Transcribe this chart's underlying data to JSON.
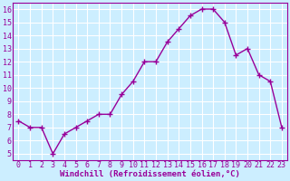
{
  "x": [
    0,
    1,
    2,
    3,
    4,
    5,
    6,
    7,
    8,
    9,
    10,
    11,
    12,
    13,
    14,
    15,
    16,
    17,
    18,
    19,
    20,
    21,
    22,
    23
  ],
  "y": [
    7.5,
    7.0,
    7.0,
    5.0,
    6.5,
    7.0,
    7.5,
    8.0,
    8.0,
    9.5,
    10.5,
    12.0,
    12.0,
    13.5,
    14.5,
    15.5,
    16.0,
    16.0,
    15.0,
    12.5,
    13.0,
    11.0,
    10.5,
    7.0
  ],
  "line_color": "#990099",
  "marker": "+",
  "marker_size": 4,
  "bg_color": "#cceeff",
  "grid_color": "#ffffff",
  "xlabel": "Windchill (Refroidissement éolien,°C)",
  "xlabel_color": "#990099",
  "tick_color": "#990099",
  "label_color": "#990099",
  "ylim": [
    4.5,
    16.5
  ],
  "xlim": [
    -0.5,
    23.5
  ],
  "yticks": [
    5,
    6,
    7,
    8,
    9,
    10,
    11,
    12,
    13,
    14,
    15,
    16
  ],
  "xticks": [
    0,
    1,
    2,
    3,
    4,
    5,
    6,
    7,
    8,
    9,
    10,
    11,
    12,
    13,
    14,
    15,
    16,
    17,
    18,
    19,
    20,
    21,
    22,
    23
  ],
  "spine_color": "#990099",
  "tick_fontsize": 6,
  "xlabel_fontsize": 6.5,
  "linewidth": 1.0
}
